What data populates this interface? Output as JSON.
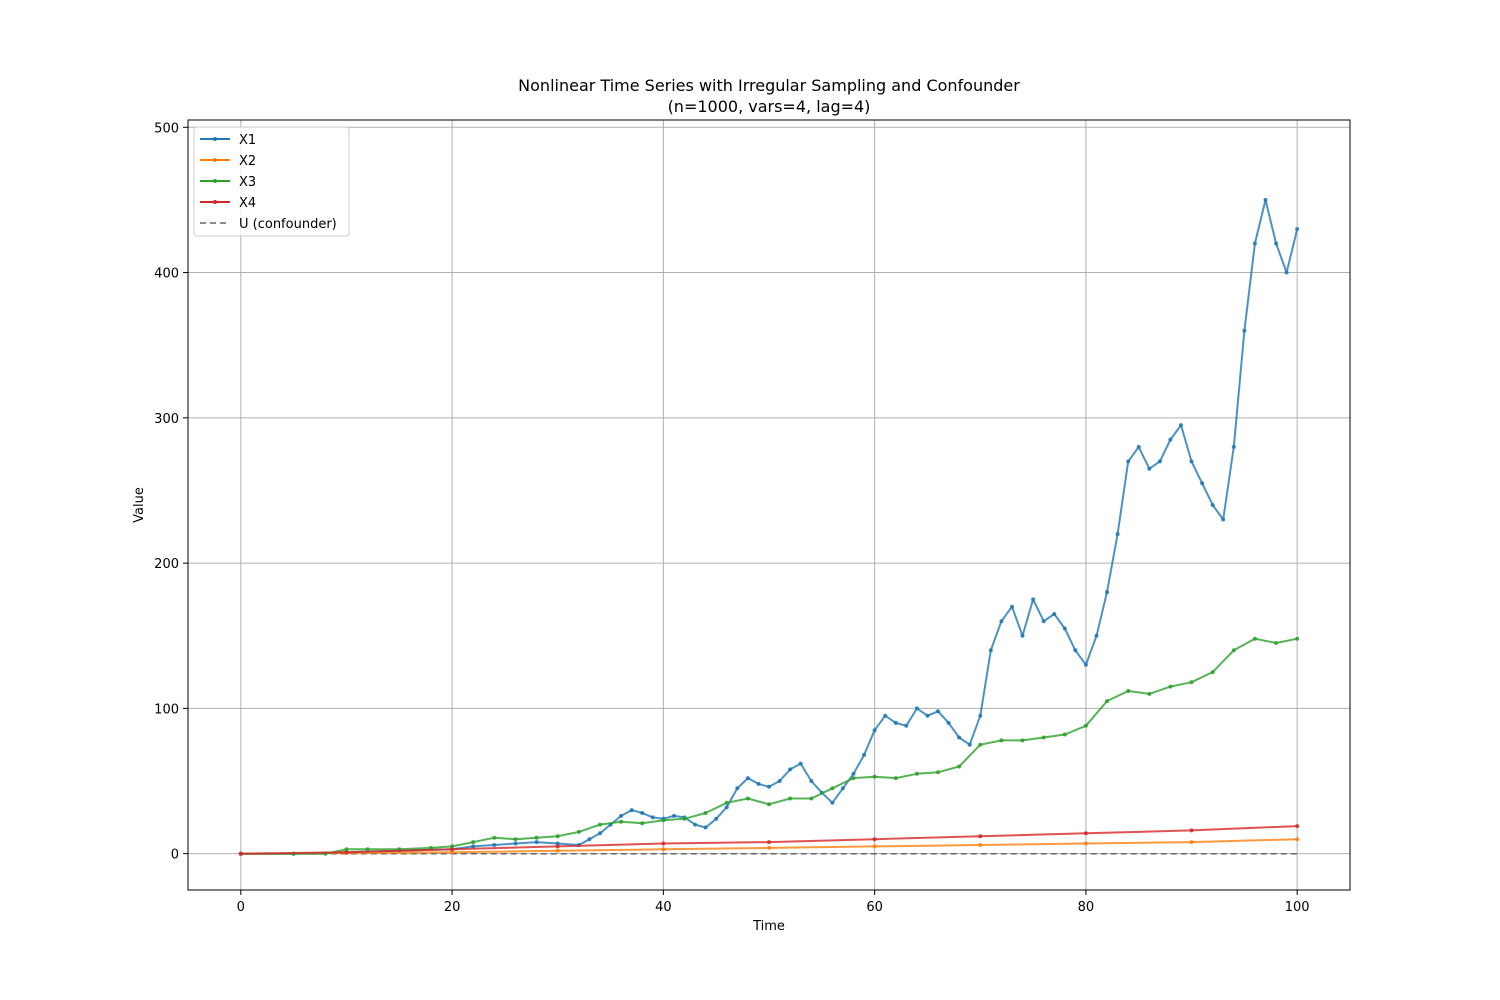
{
  "chart_data": {
    "type": "line",
    "title": "Nonlinear Time Series with Irregular Sampling and Confounder",
    "subtitle": "(n=1000, vars=4, lag=4)",
    "xlabel": "Time",
    "ylabel": "Value",
    "xlim": [
      -5,
      105
    ],
    "ylim": [
      -25,
      505
    ],
    "xticks": [
      0,
      20,
      40,
      60,
      80,
      100
    ],
    "yticks": [
      0,
      100,
      200,
      300,
      400,
      500
    ],
    "grid": true,
    "legend_position": "top-left",
    "series": [
      {
        "name": "X1",
        "color": "#1f77b4",
        "style": "line-markers",
        "x": [
          0,
          5,
          10,
          15,
          20,
          22,
          24,
          26,
          28,
          30,
          32,
          33,
          34,
          35,
          36,
          37,
          38,
          39,
          40,
          41,
          42,
          43,
          44,
          45,
          46,
          47,
          48,
          49,
          50,
          51,
          52,
          53,
          54,
          55,
          56,
          57,
          58,
          59,
          60,
          61,
          62,
          63,
          64,
          65,
          66,
          67,
          68,
          69,
          70,
          71,
          72,
          73,
          74,
          75,
          76,
          77,
          78,
          79,
          80,
          81,
          82,
          83,
          84,
          85,
          86,
          87,
          88,
          89,
          90,
          91,
          92,
          93,
          94,
          95,
          96,
          97,
          98,
          99,
          100
        ],
        "y": [
          0,
          0,
          1,
          2,
          3,
          5,
          6,
          7,
          8,
          7,
          6,
          10,
          14,
          20,
          26,
          30,
          28,
          25,
          24,
          26,
          25,
          20,
          18,
          24,
          32,
          45,
          52,
          48,
          46,
          50,
          58,
          62,
          50,
          42,
          35,
          45,
          55,
          68,
          85,
          95,
          90,
          88,
          100,
          95,
          98,
          90,
          80,
          75,
          95,
          140,
          160,
          170,
          150,
          175,
          160,
          165,
          155,
          140,
          130,
          150,
          180,
          220,
          270,
          280,
          265,
          270,
          285,
          295,
          270,
          255,
          240,
          230,
          280,
          360,
          420,
          450,
          420,
          400,
          430
        ]
      },
      {
        "name": "X2",
        "color": "#ff7f0e",
        "style": "line-markers",
        "x": [
          0,
          10,
          20,
          30,
          40,
          50,
          60,
          70,
          80,
          90,
          100
        ],
        "y": [
          0,
          0.5,
          1,
          2,
          3,
          4,
          5,
          6,
          7,
          8,
          10
        ]
      },
      {
        "name": "X3",
        "color": "#2ca02c",
        "style": "line-markers",
        "x": [
          0,
          5,
          8,
          10,
          12,
          15,
          18,
          20,
          22,
          24,
          26,
          28,
          30,
          32,
          34,
          36,
          38,
          40,
          42,
          44,
          46,
          48,
          50,
          52,
          54,
          56,
          58,
          60,
          62,
          64,
          66,
          68,
          70,
          72,
          74,
          76,
          78,
          80,
          82,
          84,
          86,
          88,
          90,
          92,
          94,
          96,
          98,
          100
        ],
        "y": [
          0,
          0,
          0,
          3,
          3,
          3,
          4,
          5,
          8,
          11,
          10,
          11,
          12,
          15,
          20,
          22,
          21,
          23,
          24,
          28,
          35,
          38,
          34,
          38,
          38,
          45,
          52,
          53,
          52,
          55,
          56,
          60,
          75,
          78,
          78,
          80,
          82,
          88,
          105,
          112,
          110,
          115,
          118,
          125,
          140,
          148,
          145,
          148
        ]
      },
      {
        "name": "X4",
        "color": "#d62728",
        "style": "line-markers",
        "x": [
          0,
          10,
          20,
          30,
          40,
          50,
          60,
          70,
          80,
          90,
          100
        ],
        "y": [
          0,
          1,
          3,
          5,
          7,
          8,
          10,
          12,
          14,
          16,
          19
        ]
      },
      {
        "name": "U (confounder)",
        "color": "#666666",
        "style": "dashed",
        "x": [
          0,
          100
        ],
        "y": [
          0,
          0
        ]
      }
    ]
  }
}
